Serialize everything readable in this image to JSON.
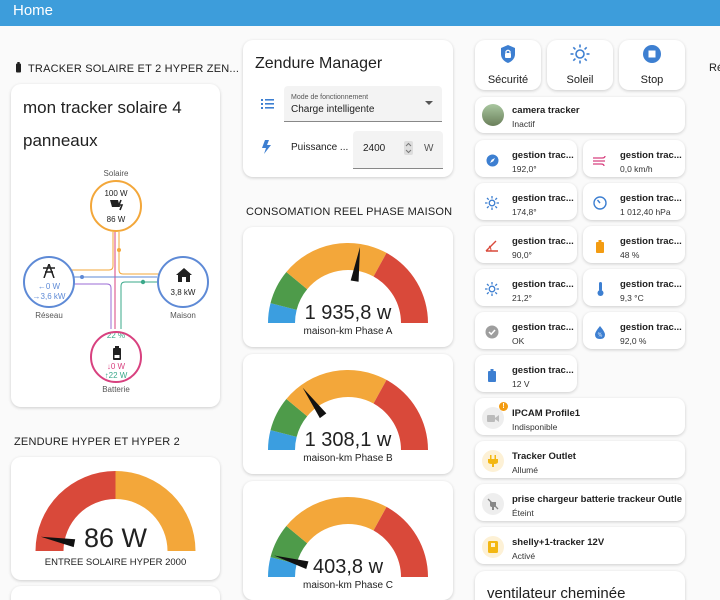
{
  "topbar": {
    "title": "Home"
  },
  "energy": {
    "section_title": "TRACKER SOLAIRE ET 2 HYPER ZEN...",
    "title_line1": "mon tracker solaire 4",
    "title_line2": "panneaux",
    "solar": {
      "label": "Solaire",
      "value1": "100 W",
      "value2": "86 W"
    },
    "grid": {
      "label": "Réseau",
      "in": "←0 W",
      "out": "→3,6 kW"
    },
    "home": {
      "label": "Maison",
      "value": "3,8 kW"
    },
    "battery": {
      "label": "Batterie",
      "percent": "22 %",
      "in": "↓0 W",
      "out": "↑22 W"
    }
  },
  "hyper": {
    "section_title": "ZENDURE HYPER ET HYPER 2",
    "value": "86 W",
    "name": "ENTREE SOLAIRE HYPER 2000",
    "gauge_fraction": 0.06
  },
  "manager": {
    "title": "Zendure Manager",
    "mode_label": "Mode de fonctionnement",
    "mode_value": "Charge intelligente",
    "power_label": "Puissance ...",
    "power_value": "2400",
    "power_unit": "W"
  },
  "consumption": {
    "section_title": "CONSOMATION REEL PHASE MAISON",
    "gauges": [
      {
        "value": "1 935,8 w",
        "name": "maison-km Phase A",
        "fraction": 0.55
      },
      {
        "value": "1 308,1 w",
        "name": "maison-km Phase B",
        "fraction": 0.3
      },
      {
        "value": "403,8 w",
        "name": "maison-km Phase C",
        "fraction": 0.09
      }
    ]
  },
  "actions": [
    {
      "label": "Sécurité",
      "icon": "lock-icon"
    },
    {
      "label": "Soleil",
      "icon": "sun-icon"
    },
    {
      "label": "Stop",
      "icon": "stop-icon"
    }
  ],
  "right_edge_text": "Ré",
  "camera": {
    "name": "camera tracker",
    "state": "Inactif"
  },
  "sensors": [
    {
      "name": "gestion trac...",
      "state": "192,0°",
      "icon": "compass-icon"
    },
    {
      "name": "gestion trac...",
      "state": "0,0 km/h",
      "icon": "wind-icon"
    },
    {
      "name": "gestion trac...",
      "state": "174,8°",
      "icon": "sun-small-icon"
    },
    {
      "name": "gestion trac...",
      "state": "1 012,40 hPa",
      "icon": "gauge-icon"
    },
    {
      "name": "gestion trac...",
      "state": "90,0°",
      "icon": "angle-icon"
    },
    {
      "name": "gestion trac...",
      "state": "48 %",
      "icon": "battery-icon"
    },
    {
      "name": "gestion trac...",
      "state": "21,2°",
      "icon": "sun-small-icon"
    },
    {
      "name": "gestion trac...",
      "state": "9,3 °C",
      "icon": "thermometer-icon"
    },
    {
      "name": "gestion trac...",
      "state": "OK",
      "icon": "check-circle-icon"
    },
    {
      "name": "gestion trac...",
      "state": "92,0 %",
      "icon": "water-drop-icon"
    },
    {
      "name": "gestion trac...",
      "state": "12 V",
      "icon": "battery-full-icon"
    }
  ],
  "devices": [
    {
      "name": "IPCAM Profile1",
      "state": "Indisponible",
      "icon": "video-camera-icon"
    },
    {
      "name": "Tracker Outlet",
      "state": "Allumé",
      "icon": "power-plug-icon"
    },
    {
      "name": "prise chargeur batterie trackeur Outlet",
      "state": "Éteint",
      "icon": "power-plug-off-icon"
    },
    {
      "name": "shelly+1-tracker 12V",
      "state": "Activé",
      "icon": "switch-icon"
    }
  ],
  "fan": {
    "title": "ventilateur cheminée"
  },
  "colors": {
    "topbar": "#3d9ddb",
    "gauge_blue": "#3b9ee0",
    "gauge_green": "#4e9b4a",
    "gauge_orange": "#f3a73a",
    "gauge_red": "#d9493a",
    "accent_blue": "#3d7fd1",
    "solar_orange": "#f3a73a",
    "grid_blue": "#5e8ad6",
    "battery_pink": "#d8417f"
  }
}
